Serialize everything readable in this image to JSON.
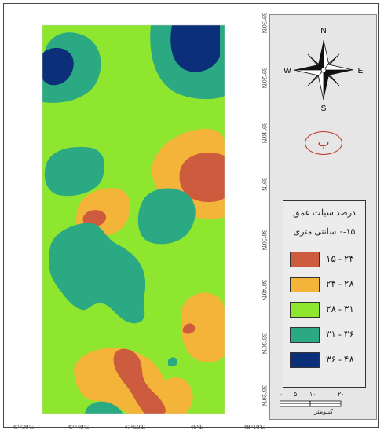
{
  "map": {
    "panel_letter": "ب",
    "compass": {
      "north": "N",
      "south": "S",
      "east": "E",
      "west": "W"
    },
    "longitude_labels": [
      "47°30'E",
      "47°40'E",
      "47°50'E",
      "48°E",
      "48°10'E"
    ],
    "latitude_labels": [
      "39°30'N",
      "39°20'N",
      "39°10'N",
      "39°N",
      "38°50'N",
      "38°40'N",
      "38°30'N",
      "38°20'N"
    ],
    "colors": {
      "class_15_24": "#cd5c3e",
      "class_24_28": "#f4b43a",
      "class_28_31": "#8ee62f",
      "class_31_36": "#2aa982",
      "class_36_48": "#0c2f7a"
    }
  },
  "legend": {
    "title": "درصد سیلت عمق",
    "subtitle": "۰-۱۵ سانتی متری",
    "items": [
      {
        "label": "۱۵ - ۲۴",
        "color": "#cd5c3e"
      },
      {
        "label": "۲۴ - ۲۸",
        "color": "#f4b43a"
      },
      {
        "label": "۲۸ - ۳۱",
        "color": "#8ee62f"
      },
      {
        "label": "۳۱ - ۳۶",
        "color": "#2aa982"
      },
      {
        "label": "۳۶ - ۴۸",
        "color": "#0c2f7a"
      }
    ]
  },
  "scale": {
    "ticks": [
      "۰",
      "۵",
      "۱۰",
      "۲۰"
    ],
    "unit": "کیلومتر"
  }
}
